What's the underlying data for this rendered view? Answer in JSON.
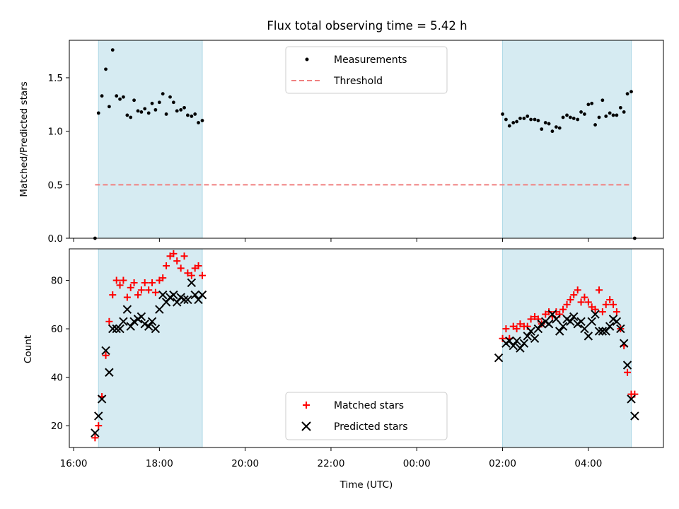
{
  "chart_data": [
    {
      "type": "scatter",
      "title": "Flux total observing time = 5.42 h",
      "xlabel": "",
      "ylabel": "Matched/Predicted stars",
      "ylim": [
        0,
        1.85
      ],
      "yticks": [
        "0.0",
        "0.5",
        "1.0",
        "1.5"
      ],
      "ytick_values": [
        0,
        0.5,
        1.0,
        1.5
      ],
      "xlim_hours": [
        15.9,
        29.75
      ],
      "legend": {
        "position": "top-center",
        "entries": [
          {
            "label": "Measurements",
            "color": "#000000",
            "marker": "dot"
          },
          {
            "label": "Threshold",
            "color": "#f08080",
            "marker": "dashed-line"
          }
        ]
      },
      "threshold": {
        "value": 0.5,
        "x_start": 16.5,
        "x_end": 29.0
      },
      "shaded_intervals_hours": [
        [
          16.58,
          19.0
        ],
        [
          26.0,
          29.0
        ]
      ],
      "series": [
        {
          "name": "Measurements",
          "color": "#000000",
          "x": [
            16.5,
            16.58,
            16.66,
            16.75,
            16.83,
            16.91,
            17.0,
            17.08,
            17.16,
            17.25,
            17.33,
            17.41,
            17.5,
            17.58,
            17.66,
            17.75,
            17.83,
            17.91,
            18.0,
            18.08,
            18.16,
            18.25,
            18.33,
            18.41,
            18.5,
            18.58,
            18.66,
            18.75,
            18.83,
            18.91,
            19.0,
            26.0,
            26.08,
            26.16,
            26.25,
            26.33,
            26.41,
            26.5,
            26.58,
            26.66,
            26.75,
            26.83,
            26.91,
            27.0,
            27.08,
            27.16,
            27.25,
            27.33,
            27.41,
            27.5,
            27.58,
            27.66,
            27.75,
            27.83,
            27.91,
            28.0,
            28.08,
            28.16,
            28.25,
            28.33,
            28.41,
            28.5,
            28.58,
            28.66,
            28.75,
            28.83,
            28.91,
            29.0,
            29.08
          ],
          "y": [
            0.0,
            1.17,
            1.33,
            1.58,
            1.23,
            1.76,
            1.33,
            1.3,
            1.32,
            1.15,
            1.13,
            1.29,
            1.19,
            1.18,
            1.21,
            1.17,
            1.26,
            1.2,
            1.27,
            1.35,
            1.16,
            1.32,
            1.27,
            1.19,
            1.2,
            1.22,
            1.15,
            1.14,
            1.16,
            1.08,
            1.1,
            1.16,
            1.11,
            1.05,
            1.08,
            1.09,
            1.12,
            1.12,
            1.14,
            1.11,
            1.11,
            1.1,
            1.02,
            1.08,
            1.07,
            1.0,
            1.04,
            1.03,
            1.13,
            1.15,
            1.13,
            1.12,
            1.11,
            1.18,
            1.16,
            1.25,
            1.26,
            1.06,
            1.13,
            1.29,
            1.14,
            1.17,
            1.15,
            1.15,
            1.22,
            1.18,
            1.35,
            1.37,
            0.0
          ]
        }
      ]
    },
    {
      "type": "scatter",
      "title": "",
      "xlabel": "Time (UTC)",
      "ylabel": "Count",
      "ylim": [
        11,
        93
      ],
      "yticks": [
        "20",
        "40",
        "60",
        "80"
      ],
      "ytick_values": [
        20,
        40,
        60,
        80
      ],
      "xlim_hours": [
        15.9,
        29.75
      ],
      "xtick_values_hours": [
        16,
        18,
        20,
        22,
        24,
        26,
        28
      ],
      "xticks": [
        "16:00",
        "18:00",
        "20:00",
        "22:00",
        "00:00",
        "02:00",
        "04:00"
      ],
      "legend": {
        "position": "bottom-center",
        "entries": [
          {
            "label": "Matched stars",
            "color": "#ff0000",
            "marker": "plus"
          },
          {
            "label": "Predicted stars",
            "color": "#000000",
            "marker": "x"
          }
        ]
      },
      "shaded_intervals_hours": [
        [
          16.58,
          19.0
        ],
        [
          26.0,
          29.0
        ]
      ],
      "series": [
        {
          "name": "Matched stars",
          "color": "#ff0000",
          "x": [
            16.5,
            16.58,
            16.66,
            16.75,
            16.83,
            16.91,
            17.0,
            17.08,
            17.16,
            17.25,
            17.33,
            17.41,
            17.5,
            17.58,
            17.66,
            17.75,
            17.83,
            17.91,
            18.0,
            18.08,
            18.16,
            18.25,
            18.33,
            18.41,
            18.5,
            18.58,
            18.66,
            18.75,
            18.83,
            18.91,
            19.0,
            26.0,
            26.08,
            26.16,
            26.25,
            26.33,
            26.41,
            26.5,
            26.58,
            26.66,
            26.75,
            26.83,
            26.91,
            27.0,
            27.08,
            27.16,
            27.25,
            27.33,
            27.41,
            27.5,
            27.58,
            27.66,
            27.75,
            27.83,
            27.91,
            28.0,
            28.08,
            28.16,
            28.25,
            28.33,
            28.41,
            28.5,
            28.58,
            28.66,
            28.75,
            28.83,
            28.91,
            29.0,
            29.08
          ],
          "y": [
            15,
            20,
            32,
            49,
            63,
            74,
            80,
            78,
            80,
            73,
            77,
            79,
            74,
            76,
            79,
            76,
            79,
            75,
            80,
            81,
            86,
            90,
            91,
            88,
            85,
            90,
            83,
            82,
            85,
            86,
            82,
            56,
            60,
            56,
            61,
            60,
            62,
            61,
            61,
            64,
            65,
            64,
            62,
            66,
            67,
            65,
            67,
            66,
            68,
            70,
            72,
            74,
            76,
            71,
            73,
            71,
            69,
            68,
            76,
            67,
            70,
            72,
            70,
            67,
            60,
            53,
            42,
            33,
            33
          ]
        },
        {
          "name": "Predicted stars",
          "color": "#000000",
          "x": [
            16.5,
            16.58,
            16.66,
            16.75,
            16.83,
            16.91,
            17.0,
            17.08,
            17.16,
            17.25,
            17.33,
            17.41,
            17.5,
            17.58,
            17.66,
            17.75,
            17.83,
            17.91,
            18.0,
            18.08,
            18.16,
            18.25,
            18.33,
            18.41,
            18.5,
            18.58,
            18.66,
            18.75,
            18.83,
            18.91,
            19.0,
            25.91,
            26.08,
            26.16,
            26.25,
            26.33,
            26.41,
            26.5,
            26.58,
            26.66,
            26.75,
            26.83,
            26.91,
            27.0,
            27.08,
            27.16,
            27.25,
            27.33,
            27.41,
            27.5,
            27.58,
            27.66,
            27.75,
            27.83,
            27.91,
            28.0,
            28.08,
            28.16,
            28.25,
            28.33,
            28.41,
            28.5,
            28.58,
            28.66,
            28.75,
            28.83,
            28.91,
            29.0,
            29.08
          ],
          "y": [
            17,
            24,
            31,
            51,
            42,
            60,
            60,
            60,
            63,
            68,
            61,
            63,
            64,
            65,
            62,
            61,
            63,
            60,
            68,
            74,
            71,
            73,
            74,
            71,
            73,
            72,
            72,
            79,
            74,
            72,
            74,
            48,
            54,
            55,
            53,
            55,
            52,
            54,
            57,
            59,
            56,
            60,
            62,
            63,
            62,
            66,
            64,
            59,
            61,
            64,
            63,
            65,
            62,
            63,
            60,
            57,
            63,
            66,
            59,
            59,
            59,
            61,
            64,
            63,
            60,
            54,
            45,
            31,
            24
          ]
        }
      ]
    }
  ]
}
